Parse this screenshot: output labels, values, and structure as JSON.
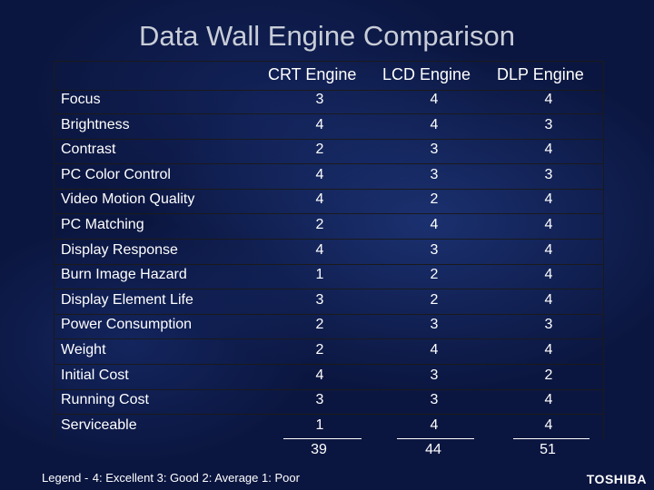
{
  "title": "Data Wall Engine Comparison",
  "columns": [
    "CRT Engine",
    "LCD Engine",
    "DLP Engine"
  ],
  "rows": [
    {
      "feature": "Focus",
      "scores": [
        "3",
        "4",
        "4"
      ]
    },
    {
      "feature": "Brightness",
      "scores": [
        "4",
        "4",
        "3"
      ]
    },
    {
      "feature": "Contrast",
      "scores": [
        "2",
        "3",
        "4"
      ]
    },
    {
      "feature": "PC Color Control",
      "scores": [
        "4",
        "3",
        "3"
      ]
    },
    {
      "feature": "Video Motion Quality",
      "scores": [
        "4",
        "2",
        "4"
      ]
    },
    {
      "feature": "PC Matching",
      "scores": [
        "2",
        "4",
        "4"
      ]
    },
    {
      "feature": "Display Response",
      "scores": [
        "4",
        "3",
        "4"
      ]
    },
    {
      "feature": "Burn Image Hazard",
      "scores": [
        "1",
        "2",
        "4"
      ]
    },
    {
      "feature": "Display Element Life",
      "scores": [
        "3",
        "2",
        "4"
      ]
    },
    {
      "feature": "Power Consumption",
      "scores": [
        "2",
        "3",
        "3"
      ]
    },
    {
      "feature": "Weight",
      "scores": [
        "2",
        "4",
        "4"
      ]
    },
    {
      "feature": "Initial Cost",
      "scores": [
        "4",
        "3",
        "2"
      ]
    },
    {
      "feature": "Running Cost",
      "scores": [
        "3",
        "3",
        "4"
      ]
    },
    {
      "feature": "Serviceable",
      "scores": [
        "1",
        "4",
        "4"
      ]
    }
  ],
  "totals": [
    "39",
    "44",
    "51"
  ],
  "legend": {
    "label": "Legend -",
    "text": "4: Excellent 3: Good 2: Average 1: Poor"
  },
  "brand": "TOSHIBA"
}
